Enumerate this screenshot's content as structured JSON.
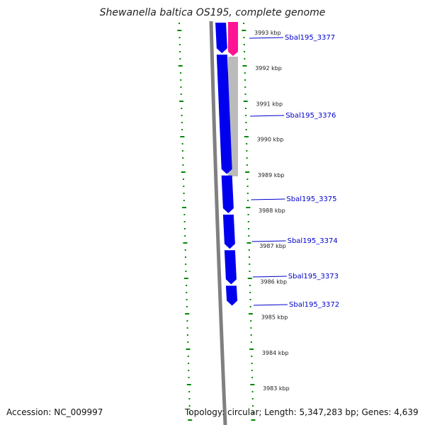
{
  "title": "Shewanella baltica OS195, complete genome",
  "scale_labels": [
    "3993 kbp",
    "3992 kbp",
    "3991 kbp",
    "3990 kbp",
    "3989 kbp",
    "3988 kbp",
    "3987 kbp",
    "3986 kbp",
    "3985 kbp",
    "3984 kbp",
    "3983 kbp"
  ],
  "genes": [
    {
      "name": "Sbal195_3377",
      "start_kbp": 3993.3,
      "end_kbp": 3992.4
    },
    {
      "name": "Sbal195_3376",
      "start_kbp": 3992.4,
      "end_kbp": 3989.0
    },
    {
      "name": "Sbal195_3375",
      "start_kbp": 3989.0,
      "end_kbp": 3987.9
    },
    {
      "name": "Sbal195_3374",
      "start_kbp": 3987.9,
      "end_kbp": 3986.9
    },
    {
      "name": "Sbal195_3373",
      "start_kbp": 3986.9,
      "end_kbp": 3985.9
    },
    {
      "name": "Sbal195_3372",
      "start_kbp": 3985.9,
      "end_kbp": 3985.3
    }
  ],
  "feature_colors": {
    "cds": "#0000ee",
    "rrna": "#ff1493",
    "region": "#bbbbbb",
    "backbone": "#808080",
    "ticks": "#008800"
  },
  "footer": {
    "accession": "Accession: NC_009997",
    "summary": "Topology: circular; Length: 5,347,283 bp; Genes: 4,639"
  }
}
